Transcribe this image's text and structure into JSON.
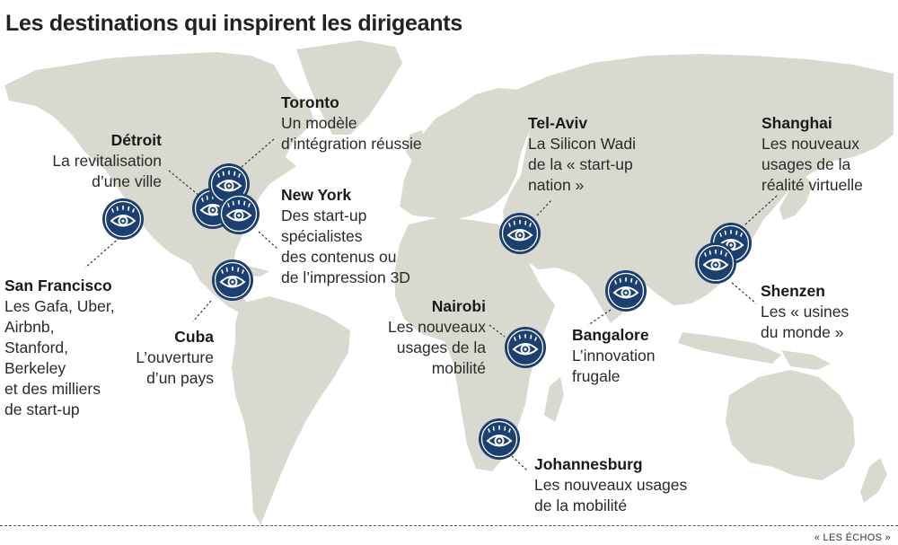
{
  "title": "Les destinations qui inspirent les dirigeants",
  "credit": "« LES ÉCHOS »",
  "colors": {
    "land": "#d9d9cf",
    "marker": "#1b3f6e",
    "marker_ring": "#ffffff",
    "leader": "#333333"
  },
  "marker_icon": "eye-icon",
  "destinations": [
    {
      "city": "San Francisco",
      "desc": "Les Gafa, Uber,\nAirbnb,\nStanford,\nBerkeley\net des milliers\nde start-up"
    },
    {
      "city": "Détroit",
      "desc": "La revitalisation\nd’une ville"
    },
    {
      "city": "Toronto",
      "desc": "Un modèle\nd’intégration réussie"
    },
    {
      "city": "New York",
      "desc": "Des start-up\nspécialistes\ndes contenus ou\nde l’impression 3D"
    },
    {
      "city": "Cuba",
      "desc": "L’ouverture\nd’un pays"
    },
    {
      "city": "Tel-Aviv",
      "desc": "La Silicon Wadi\nde la « start-up\nnation »"
    },
    {
      "city": "Nairobi",
      "desc": "Les nouveaux\nusages de la\nmobilité"
    },
    {
      "city": "Bangalore",
      "desc": "L’innovation\nfrugale"
    },
    {
      "city": "Johannesburg",
      "desc": "Les nouveaux usages\nde la mobilité"
    },
    {
      "city": "Shanghai",
      "desc": "Les nouveaux\nusages de la\nréalité virtuelle"
    },
    {
      "city": "Shenzen",
      "desc": "Les « usines\ndu monde »"
    }
  ]
}
